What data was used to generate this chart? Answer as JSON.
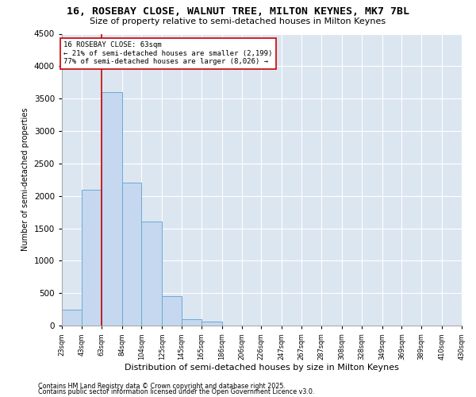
{
  "title": "16, ROSEBAY CLOSE, WALNUT TREE, MILTON KEYNES, MK7 7BL",
  "subtitle": "Size of property relative to semi-detached houses in Milton Keynes",
  "xlabel": "Distribution of semi-detached houses by size in Milton Keynes",
  "ylabel": "Number of semi-detached properties",
  "annotation_title": "16 ROSEBAY CLOSE: 63sqm",
  "annotation_line1": "← 21% of semi-detached houses are smaller (2,199)",
  "annotation_line2": "77% of semi-detached houses are larger (8,026) →",
  "footer1": "Contains HM Land Registry data © Crown copyright and database right 2025.",
  "footer2": "Contains public sector information licensed under the Open Government Licence v3.0.",
  "property_size": 63,
  "bins": [
    23,
    43,
    63,
    84,
    104,
    125,
    145,
    165,
    186,
    206,
    226,
    247,
    267,
    287,
    308,
    328,
    349,
    369,
    389,
    410,
    430
  ],
  "counts": [
    250,
    2100,
    3600,
    2200,
    1600,
    450,
    100,
    60,
    0,
    0,
    0,
    0,
    0,
    0,
    0,
    0,
    0,
    0,
    0,
    0
  ],
  "bar_color": "#c5d8ef",
  "bar_edge_color": "#6aaad4",
  "marker_color": "#cc0000",
  "background_color": "#dce6f1",
  "grid_color": "#c0cfe0",
  "ylim": [
    0,
    4500
  ],
  "yticks": [
    0,
    500,
    1000,
    1500,
    2000,
    2500,
    3000,
    3500,
    4000,
    4500
  ]
}
